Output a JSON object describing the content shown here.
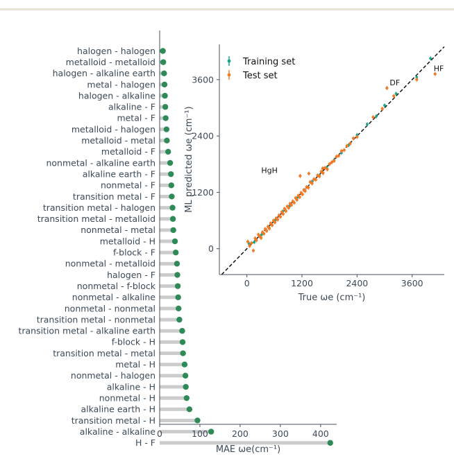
{
  "colors": {
    "top_bar": "#e7e3d6",
    "stem": "#cccccc",
    "dot": "#2e8b57",
    "axis": "#44505c",
    "training": "#1aa58a",
    "test": "#f07b28",
    "diagonal": "#111111"
  },
  "chart_data": [
    {
      "type": "lollipop",
      "orientation": "horizontal",
      "xlabel": "MAE ωe(cm⁻¹)",
      "xlim": [
        0,
        440
      ],
      "xticks": [
        "0",
        "100",
        "200",
        "300",
        "400"
      ],
      "categories": [
        "halogen - halogen",
        "metalloid - metalloid",
        "halogen - alkaline earth",
        "metal - halogen",
        "halogen - alkaline",
        "alkaline - F",
        "metal - F",
        "metalloid - halogen",
        "metalloid - metal",
        "metalloid - F",
        "nonmetal - alkaline earth",
        "alkaline earth - F",
        "nonmetal - F",
        "transition metal - F",
        "transition metal - halogen",
        "transition metal - metalloid",
        "nonmetal - metal",
        "metalloid - H",
        "f-block - F",
        "nonmetal - metalloid",
        "halogen - F",
        "nonmetal - f-block",
        "nonmetal - alkaline",
        "nonmetal - nonmetal",
        "transition metal - nonmetal",
        "transition metal - alkaline earth",
        "f-block - H",
        "transition metal - metal",
        "metal - H",
        "nonmetal - halogen",
        "alkaline - H",
        "nonmetal - H",
        "alkaline earth - H",
        "transition metal - H",
        "alkaline - alkaline",
        "H - F"
      ],
      "values": [
        8,
        9,
        11,
        12,
        13,
        14,
        15,
        17,
        18,
        21,
        26,
        28,
        29,
        30,
        32,
        33,
        34,
        38,
        40,
        43,
        44,
        45,
        46,
        47,
        49,
        56,
        57,
        58,
        62,
        64,
        65,
        67,
        74,
        94,
        128,
        424
      ]
    },
    {
      "type": "scatter",
      "xlabel": "True ωe (cm⁻¹)",
      "ylabel": "ML predicted ωe (cm⁻¹)",
      "xlim": [
        -600,
        4300
      ],
      "ylim": [
        -550,
        4350
      ],
      "xticks": [
        "0",
        "1200",
        "2400",
        "3600"
      ],
      "yticks": [
        "0",
        "1200",
        "2400",
        "3600"
      ],
      "legend_position": "top-left",
      "series": [
        {
          "name": "Training set",
          "points": [
            [
              50,
              100
            ],
            [
              160,
              140
            ],
            [
              320,
              300
            ],
            [
              480,
              460
            ],
            [
              620,
              610
            ],
            [
              780,
              790
            ],
            [
              940,
              920
            ],
            [
              1100,
              1090
            ],
            [
              1260,
              1240
            ],
            [
              1420,
              1430
            ],
            [
              1580,
              1560
            ],
            [
              1740,
              1730
            ],
            [
              1900,
              1890
            ],
            [
              2060,
              2040
            ],
            [
              2220,
              2210
            ],
            [
              2400,
              2420
            ],
            [
              2620,
              2650
            ],
            [
              2820,
              2820
            ],
            [
              3000,
              3050
            ],
            [
              3250,
              3300
            ],
            [
              3700,
              3650
            ],
            [
              4000,
              4050
            ]
          ]
        },
        {
          "name": "Test set",
          "points": [
            [
              20,
              150
            ],
            [
              60,
              60
            ],
            [
              100,
              120
            ],
            [
              140,
              -40
            ],
            [
              180,
              220
            ],
            [
              210,
              180
            ],
            [
              250,
              300
            ],
            [
              280,
              260
            ],
            [
              310,
              230
            ],
            [
              340,
              350
            ],
            [
              370,
              320
            ],
            [
              400,
              420
            ],
            [
              430,
              380
            ],
            [
              460,
              470
            ],
            [
              490,
              430
            ],
            [
              520,
              540
            ],
            [
              550,
              500
            ],
            [
              580,
              600
            ],
            [
              610,
              560
            ],
            [
              640,
              650
            ],
            [
              670,
              620
            ],
            [
              700,
              710
            ],
            [
              730,
              680
            ],
            [
              760,
              780
            ],
            [
              790,
              740
            ],
            [
              820,
              850
            ],
            [
              850,
              800
            ],
            [
              880,
              900
            ],
            [
              910,
              870
            ],
            [
              940,
              960
            ],
            [
              970,
              930
            ],
            [
              1000,
              1010
            ],
            [
              1030,
              980
            ],
            [
              1060,
              1080
            ],
            [
              1090,
              1040
            ],
            [
              1120,
              1130
            ],
            [
              1150,
              1100
            ],
            [
              1180,
              1190
            ],
            [
              1210,
              1160
            ],
            [
              1240,
              1250
            ],
            [
              1270,
              1230
            ],
            [
              1300,
              1310
            ],
            [
              1340,
              1300
            ],
            [
              1380,
              1420
            ],
            [
              1420,
              1390
            ],
            [
              1460,
              1480
            ],
            [
              1500,
              1470
            ],
            [
              1540,
              1560
            ],
            [
              1580,
              1540
            ],
            [
              1620,
              1640
            ],
            [
              1660,
              1610
            ],
            [
              1700,
              1720
            ],
            [
              1750,
              1690
            ],
            [
              1800,
              1800
            ],
            [
              1850,
              1840
            ],
            [
              1900,
              1870
            ],
            [
              1950,
              1960
            ],
            [
              2000,
              1980
            ],
            [
              2060,
              2080
            ],
            [
              2120,
              2100
            ],
            [
              2180,
              2190
            ],
            [
              2250,
              2240
            ],
            [
              2320,
              2350
            ],
            [
              2400,
              2380
            ],
            [
              2750,
              2800
            ],
            [
              2950,
              2980
            ],
            [
              3050,
              3420
            ],
            [
              3200,
              3250
            ],
            [
              3700,
              3600
            ],
            [
              4100,
              3720
            ],
            [
              1160,
              1550
            ],
            [
              1350,
              1600
            ],
            [
              1650,
              1710
            ]
          ]
        }
      ],
      "annotations": [
        "DF",
        "HF",
        "HgH"
      ]
    }
  ]
}
